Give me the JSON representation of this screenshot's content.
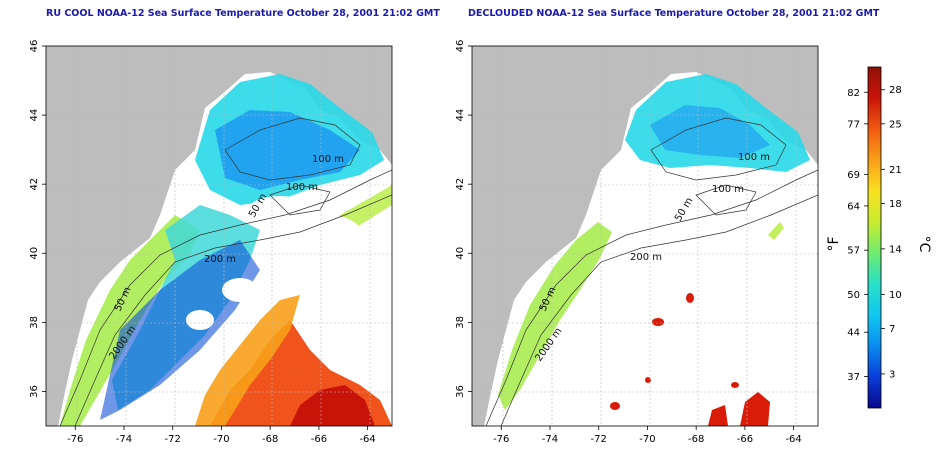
{
  "panels": [
    {
      "title": "RU COOL NOAA-12 Sea Surface Temperature October 28, 2001 21:02 GMT",
      "contour_labels": [
        "100 m",
        "100 m",
        "50 m",
        "200 m",
        "50 m",
        "2000 m"
      ]
    },
    {
      "title": "DECLOUDED NOAA-12 Sea Surface Temperature October 28, 2001 21:02 GMT",
      "contour_labels": [
        "100 m",
        "100 m",
        "50 m",
        "200 m",
        "50 m",
        "2000 m"
      ]
    }
  ],
  "axes": {
    "x_ticks": [
      "-76",
      "-74",
      "-72",
      "-70",
      "-68",
      "-66",
      "-64"
    ],
    "y_ticks": [
      "36",
      "38",
      "40",
      "42",
      "44",
      "46"
    ],
    "x_range": [
      -77.2,
      -63
    ],
    "y_range": [
      35,
      46
    ]
  },
  "colorbar": {
    "unit_f": "°F",
    "unit_c": "°C",
    "f_ticks": [
      "82",
      "77",
      "69",
      "64",
      "57",
      "50",
      "44",
      "37"
    ],
    "c_ticks": [
      "28",
      "25",
      "21",
      "18",
      "14",
      "10",
      "7",
      "3"
    ],
    "colors": [
      "#08088a",
      "#0a3cd8",
      "#0a8cf0",
      "#10c8ee",
      "#28e0c8",
      "#70ec70",
      "#c8ec30",
      "#f8e020",
      "#f8a018",
      "#f05a10",
      "#c81408",
      "#901008"
    ]
  },
  "colors": {
    "land": "#bdbdbd",
    "ocean_cloud": "#ffffff",
    "grid": "#b8b8b8",
    "title": "#1a1ab0"
  }
}
